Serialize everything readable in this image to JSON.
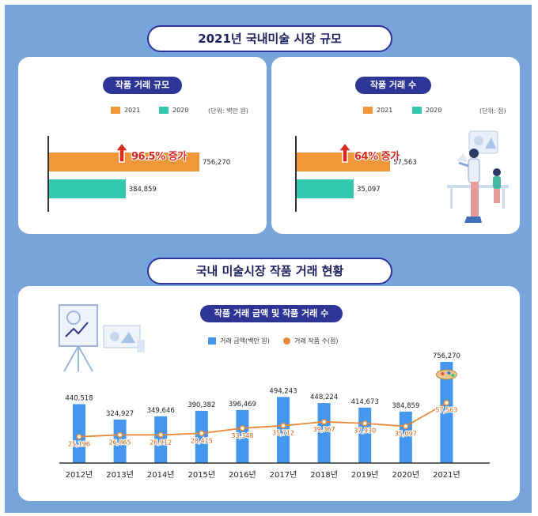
{
  "header": {
    "top_title": "2021년 국내미술 시장 규모",
    "bottom_title": "국내 미술시장 작품 거래 현황"
  },
  "panel_amount": {
    "title": "작품 거래 규모",
    "legend": [
      "2021",
      "2020"
    ],
    "unit": "(단위: 백만 원)",
    "badge": "96.5% 증가",
    "value_2021": "756,270",
    "value_2020": "384,859"
  },
  "panel_count": {
    "title": "작품 거래 수",
    "legend": [
      "2021",
      "2020"
    ],
    "unit": "(단위: 점)",
    "badge": "64% 증가",
    "value_2021": "57,563",
    "value_2020": "35,097"
  },
  "combo": {
    "title": "작품 거래 금액 및 작품 거래 수",
    "legend_bar": "거래 금액(백만 원)",
    "legend_line": "거래 작품 수(점)"
  },
  "colors": {
    "bg": "#78a4dc",
    "navy": "#2d3596",
    "orange": "#f2963a",
    "teal": "#33c9ae",
    "bar": "#4596ee",
    "line": "#e8883a"
  },
  "chart_data": [
    {
      "type": "bar",
      "title": "작품 거래 규모",
      "unit": "(단위: 백만 원)",
      "orientation": "horizontal",
      "series": [
        {
          "name": "2021",
          "values": [
            756270
          ]
        },
        {
          "name": "2020",
          "values": [
            384859
          ]
        }
      ],
      "annotation": "96.5% 증가"
    },
    {
      "type": "bar",
      "title": "작품 거래 수",
      "unit": "(단위: 점)",
      "orientation": "horizontal",
      "series": [
        {
          "name": "2021",
          "values": [
            57563
          ]
        },
        {
          "name": "2020",
          "values": [
            35097
          ]
        }
      ],
      "annotation": "64% 증가"
    },
    {
      "type": "bar",
      "title": "작품 거래 금액 및 작품 거래 수",
      "categories": [
        "2012년",
        "2013년",
        "2014년",
        "2015년",
        "2016년",
        "2017년",
        "2018년",
        "2019년",
        "2020년",
        "2021년"
      ],
      "series": [
        {
          "name": "거래 금액(백만 원)",
          "type": "bar",
          "values": [
            440518,
            324927,
            349646,
            390382,
            396469,
            494243,
            448224,
            414673,
            384859,
            756270
          ],
          "labels": [
            "440,518",
            "324,927",
            "349,646",
            "390,382",
            "396,469",
            "494,243",
            "448,224",
            "414,673",
            "384,859",
            "756,270"
          ]
        },
        {
          "name": "거래 작품 수(점)",
          "type": "line",
          "values": [
            25196,
            26865,
            26912,
            28415,
            33348,
            35712,
            39367,
            37930,
            35097,
            57563
          ],
          "labels": [
            "25,196",
            "26,865",
            "26,912",
            "28,415",
            "33,348",
            "35,712",
            "39,367",
            "37,930",
            "35,097",
            "57,563"
          ]
        }
      ],
      "legend": "top-center"
    }
  ]
}
